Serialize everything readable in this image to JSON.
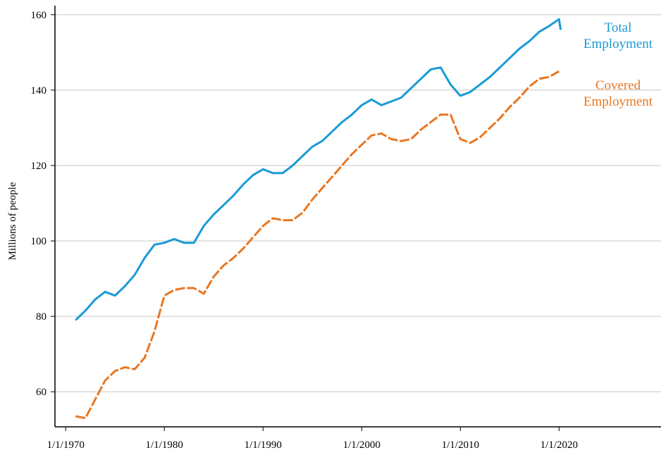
{
  "chart_data": {
    "type": "line",
    "y_label": "Millions of people",
    "xlim": [
      "1968-12-01",
      "2030-05-01"
    ],
    "ylim": [
      50.7,
      162.4
    ],
    "xticks": [
      {
        "value": "1970-01-01",
        "label": "1/1/1970"
      },
      {
        "value": "1980-01-01",
        "label": "1/1/1980"
      },
      {
        "value": "1990-01-01",
        "label": "1/1/1990"
      },
      {
        "value": "2000-01-01",
        "label": "1/1/2000"
      },
      {
        "value": "2010-01-01",
        "label": "1/1/2010"
      },
      {
        "value": "2020-01-01",
        "label": "1/1/2020"
      }
    ],
    "yticks": [
      60,
      80,
      100,
      120,
      140,
      160
    ],
    "grid": true,
    "series": [
      {
        "name": "Total Employment",
        "color": "#1a9ad6",
        "dash": false,
        "x": [
          "1971-01-01",
          "1972-01-01",
          "1973-01-01",
          "1974-01-01",
          "1975-01-01",
          "1976-01-01",
          "1977-01-01",
          "1978-01-01",
          "1979-01-01",
          "1980-01-01",
          "1981-01-01",
          "1982-01-01",
          "1983-01-01",
          "1984-01-01",
          "1985-01-01",
          "1986-01-01",
          "1987-01-01",
          "1988-01-01",
          "1989-01-01",
          "1990-01-01",
          "1991-01-01",
          "1992-01-01",
          "1993-01-01",
          "1994-01-01",
          "1995-01-01",
          "1996-01-01",
          "1997-01-01",
          "1998-01-01",
          "1999-01-01",
          "2000-01-01",
          "2001-01-01",
          "2002-01-01",
          "2003-01-01",
          "2004-01-01",
          "2005-01-01",
          "2006-01-01",
          "2007-01-01",
          "2008-01-01",
          "2009-01-01",
          "2010-01-01",
          "2011-01-01",
          "2012-01-01",
          "2013-01-01",
          "2014-01-01",
          "2015-01-01",
          "2016-01-01",
          "2017-01-01",
          "2018-01-01",
          "2019-01-01",
          "2020-01-01",
          "2020-03-01"
        ],
        "values": [
          79,
          81.5,
          84.5,
          86.5,
          85.5,
          88,
          91,
          95.5,
          99,
          99.5,
          100.5,
          99.5,
          99.5,
          104,
          107,
          109.5,
          112,
          115,
          117.5,
          119,
          118,
          118,
          120,
          122.5,
          125,
          126.5,
          129,
          131.5,
          133.5,
          136,
          137.5,
          136,
          137,
          138,
          140.5,
          143,
          145.5,
          146,
          141.5,
          138.5,
          139.5,
          141.5,
          143.5,
          146,
          148.5,
          151,
          153,
          155.5,
          157,
          158.8,
          156
        ]
      },
      {
        "name": "Covered Employment",
        "color": "#e87722",
        "dash": true,
        "x": [
          "1971-01-01",
          "1972-01-01",
          "1973-01-01",
          "1974-01-01",
          "1975-01-01",
          "1976-01-01",
          "1977-01-01",
          "1978-01-01",
          "1979-01-01",
          "1980-01-01",
          "1981-01-01",
          "1982-01-01",
          "1983-01-01",
          "1984-01-01",
          "1985-01-01",
          "1986-01-01",
          "1987-01-01",
          "1988-01-01",
          "1989-01-01",
          "1990-01-01",
          "1991-01-01",
          "1992-01-01",
          "1993-01-01",
          "1994-01-01",
          "1995-01-01",
          "1996-01-01",
          "1997-01-01",
          "1998-01-01",
          "1999-01-01",
          "2000-01-01",
          "2001-01-01",
          "2002-01-01",
          "2003-01-01",
          "2004-01-01",
          "2005-01-01",
          "2006-01-01",
          "2007-01-01",
          "2008-01-01",
          "2009-01-01",
          "2010-01-01",
          "2011-01-01",
          "2012-01-01",
          "2013-01-01",
          "2014-01-01",
          "2015-01-01",
          "2016-01-01",
          "2017-01-01",
          "2018-01-01",
          "2019-01-01",
          "2020-01-01"
        ],
        "values": [
          53.5,
          53,
          58,
          63,
          65.5,
          66.5,
          66,
          69,
          76,
          85.5,
          87,
          87.5,
          87.5,
          86,
          90.5,
          93.5,
          95.5,
          98,
          101,
          104,
          106,
          105.5,
          105.5,
          107.5,
          111,
          114,
          117,
          120,
          123,
          125.5,
          128,
          128.5,
          127,
          126.5,
          127,
          129.5,
          131.5,
          133.5,
          133.5,
          127,
          126,
          127.5,
          130,
          132.5,
          135.5,
          138,
          141,
          143,
          143.5,
          145
        ]
      }
    ]
  }
}
